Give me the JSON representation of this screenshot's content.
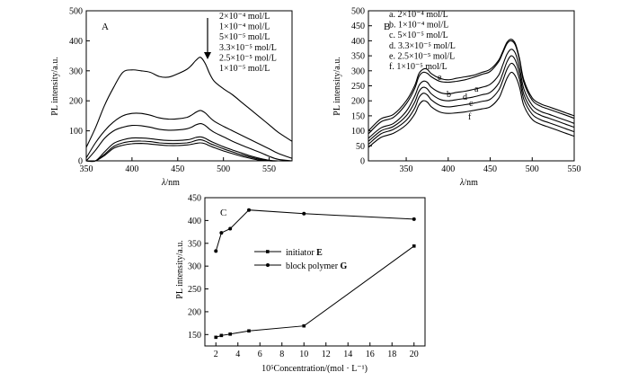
{
  "chart_data": [
    {
      "type": "line",
      "panel_label": "A",
      "xlabel_italic": "λ",
      "xlabel_rest": "/nm",
      "ylabel": "PL intensity/a.u.",
      "xlim": [
        350,
        575
      ],
      "ylim": [
        0,
        500
      ],
      "xticks": [
        350,
        400,
        450,
        500,
        550
      ],
      "yticks": [
        0,
        100,
        200,
        300,
        400,
        500
      ],
      "legend_text": [
        "2×10⁻⁴ mol/L",
        "1×10⁻⁴ mol/L",
        "5×10⁻⁵ mol/L",
        "3.3×10⁻⁵ mol/L",
        "2.5×10⁻⁵ mol/L",
        "1×10⁻⁵ mol/L"
      ],
      "arrow_annotation": "decreasing concentration arrow",
      "x": [
        350,
        360,
        370,
        380,
        390,
        400,
        410,
        420,
        430,
        440,
        450,
        460,
        465,
        470,
        475,
        480,
        485,
        490,
        500,
        510,
        520,
        530,
        540,
        550,
        560,
        575
      ],
      "series": [
        {
          "values": [
            45,
            110,
            185,
            245,
            295,
            303,
            300,
            295,
            281,
            279,
            290,
            305,
            318,
            335,
            345,
            325,
            290,
            265,
            240,
            220,
            195,
            170,
            145,
            120,
            95,
            65
          ]
        },
        {
          "values": [
            10,
            60,
            100,
            130,
            150,
            158,
            158,
            152,
            143,
            139,
            140,
            145,
            152,
            162,
            168,
            160,
            145,
            132,
            115,
            100,
            85,
            70,
            55,
            40,
            25,
            8
          ]
        },
        {
          "values": [
            0,
            35,
            75,
            100,
            112,
            118,
            117,
            112,
            105,
            102,
            103,
            107,
            112,
            120,
            124,
            118,
            105,
            95,
            80,
            65,
            52,
            40,
            28,
            15,
            5,
            0
          ]
        },
        {
          "values": [
            0,
            0,
            30,
            58,
            70,
            76,
            76,
            74,
            70,
            68,
            68,
            70,
            73,
            78,
            80,
            75,
            67,
            60,
            47,
            36,
            26,
            16,
            8,
            2,
            0,
            0
          ]
        },
        {
          "values": [
            0,
            0,
            22,
            48,
            60,
            65,
            66,
            64,
            60,
            58,
            58,
            60,
            63,
            68,
            70,
            66,
            58,
            52,
            40,
            30,
            20,
            12,
            5,
            0,
            0,
            0
          ]
        },
        {
          "values": [
            0,
            0,
            18,
            42,
            52,
            57,
            58,
            56,
            53,
            51,
            51,
            53,
            55,
            58,
            60,
            57,
            50,
            44,
            33,
            24,
            15,
            8,
            2,
            0,
            0,
            0
          ]
        }
      ]
    },
    {
      "type": "line",
      "panel_label": "B",
      "xlabel_italic": "λ",
      "xlabel_rest": "/nm",
      "ylabel": "PL intensity/a.u.",
      "xlim": [
        305,
        550
      ],
      "ylim": [
        0,
        500
      ],
      "xticks": [
        350,
        400,
        450,
        500,
        550
      ],
      "yticks": [
        0,
        50,
        100,
        150,
        200,
        250,
        300,
        350,
        400,
        450,
        500
      ],
      "legend_text": [
        "a. 2×10⁻⁴ mol/L",
        "b. 1×10⁻⁴ mol/L",
        "c. 5×10⁻⁵ mol/L",
        "d. 3.3×10⁻⁵ mol/L",
        "e. 2.5×10⁻⁵ mol/L",
        "f. 1×10⁻⁵ mol/L"
      ],
      "x": [
        305,
        320,
        335,
        350,
        360,
        365,
        370,
        375,
        380,
        390,
        400,
        410,
        420,
        430,
        440,
        450,
        460,
        465,
        470,
        475,
        480,
        485,
        490,
        500,
        510,
        520,
        530,
        540,
        550
      ],
      "series": [
        {
          "name": "a",
          "values": [
            100,
            140,
            155,
            200,
            250,
            290,
            305,
            305,
            290,
            275,
            270,
            275,
            280,
            285,
            295,
            305,
            335,
            365,
            395,
            405,
            390,
            340,
            270,
            210,
            190,
            180,
            170,
            160,
            150
          ]
        },
        {
          "name": "b",
          "values": [
            90,
            130,
            145,
            190,
            240,
            280,
            295,
            292,
            280,
            265,
            262,
            265,
            270,
            278,
            288,
            298,
            330,
            360,
            390,
            400,
            385,
            335,
            262,
            202,
            182,
            172,
            162,
            152,
            142
          ]
        },
        {
          "name": "c",
          "values": [
            75,
            110,
            125,
            165,
            215,
            250,
            265,
            262,
            245,
            228,
            223,
            228,
            232,
            238,
            245,
            255,
            285,
            320,
            355,
            372,
            358,
            310,
            240,
            185,
            165,
            155,
            145,
            135,
            125
          ]
        },
        {
          "name": "d",
          "values": [
            65,
            100,
            115,
            150,
            195,
            230,
            245,
            240,
            223,
            205,
            200,
            204,
            208,
            213,
            220,
            228,
            258,
            292,
            330,
            350,
            335,
            290,
            222,
            170,
            152,
            142,
            132,
            122,
            112
          ]
        },
        {
          "name": "e",
          "values": [
            55,
            90,
            105,
            135,
            175,
            210,
            225,
            220,
            203,
            185,
            180,
            183,
            187,
            192,
            198,
            205,
            235,
            268,
            305,
            325,
            312,
            270,
            205,
            155,
            137,
            127,
            117,
            107,
            97
          ]
        },
        {
          "name": "f",
          "values": [
            45,
            78,
            92,
            120,
            155,
            185,
            200,
            196,
            180,
            163,
            158,
            160,
            163,
            168,
            173,
            180,
            208,
            240,
            275,
            295,
            282,
            245,
            185,
            138,
            122,
            112,
            102,
            92,
            82
          ]
        }
      ],
      "curve_labels": [
        "e",
        "b",
        "a",
        "d",
        "c",
        "f"
      ]
    },
    {
      "type": "line",
      "panel_label": "C",
      "xlabel": "10⁵Concentration/(mol · L⁻¹)",
      "ylabel": "PL intensity/a.u.",
      "xlim": [
        1,
        21
      ],
      "ylim": [
        125,
        450
      ],
      "xticks": [
        2,
        4,
        6,
        8,
        10,
        12,
        14,
        16,
        18,
        20
      ],
      "yticks": [
        150,
        200,
        250,
        300,
        350,
        400,
        450
      ],
      "legend": [
        {
          "text": "initiator ",
          "bold": "E"
        },
        {
          "text": "block polymer ",
          "bold": "G"
        }
      ],
      "series": [
        {
          "name": "initiator E",
          "x": [
            2,
            2.5,
            3.3,
            5,
            10,
            20
          ],
          "values": [
            144,
            148,
            151,
            158,
            169,
            344
          ]
        },
        {
          "name": "block polymer G",
          "x": [
            2,
            2.5,
            3.3,
            5,
            10,
            20
          ],
          "values": [
            333,
            373,
            382,
            423,
            415,
            403
          ]
        }
      ]
    }
  ]
}
